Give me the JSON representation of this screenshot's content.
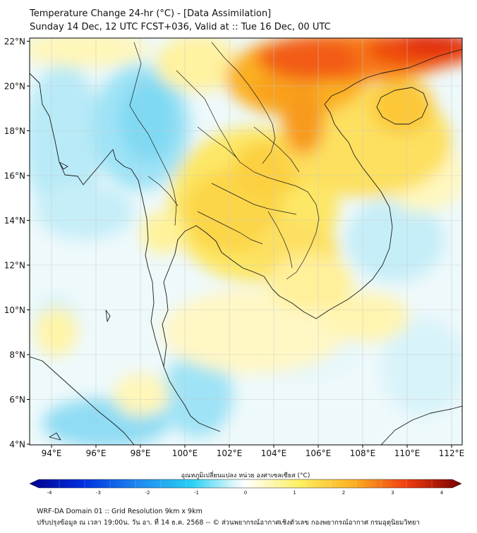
{
  "header": {
    "title": "Temperature Change 24-hr (°C) - [Data Assimilation]",
    "subtitle": "Sunday 14 Dec, 12 UTC FCST+036, Valid at :: Tue 16 Dec, 00 UTC"
  },
  "map": {
    "lat_ticks": [
      "22°N",
      "20°N",
      "18°N",
      "16°N",
      "14°N",
      "12°N",
      "10°N",
      "8°N",
      "6°N",
      "4°N"
    ],
    "lon_ticks": [
      "94°E",
      "96°E",
      "98°E",
      "100°E",
      "102°E",
      "104°E",
      "106°E",
      "108°E",
      "110°E",
      "112°E"
    ],
    "lat_range": [
      4,
      22.2
    ],
    "lon_range": [
      93,
      112.4
    ]
  },
  "colorbar": {
    "label": "อุณหภูมิเปลี่ยนแปลง หน่วย องศาเซลเซียส (°C)",
    "ticks": [
      "-4",
      "-3",
      "-2",
      "-1",
      "0",
      "1",
      "2",
      "3",
      "4"
    ],
    "range": [
      -4,
      4
    ]
  },
  "footer": {
    "line1": "WRF-DA Domain 01 :: Grid Resolution 9km x 9km",
    "line2": "ปรับปรุงข้อมูล ณ เวลา 19:00น. วัน อา. ที่ 14 ธ.ค. 2568 -- © ส่วนพยากรณ์อากาศเชิงตัวเลข กองพยากรณ์อากาศ กรมอุตุนิยมวิทยา"
  }
}
